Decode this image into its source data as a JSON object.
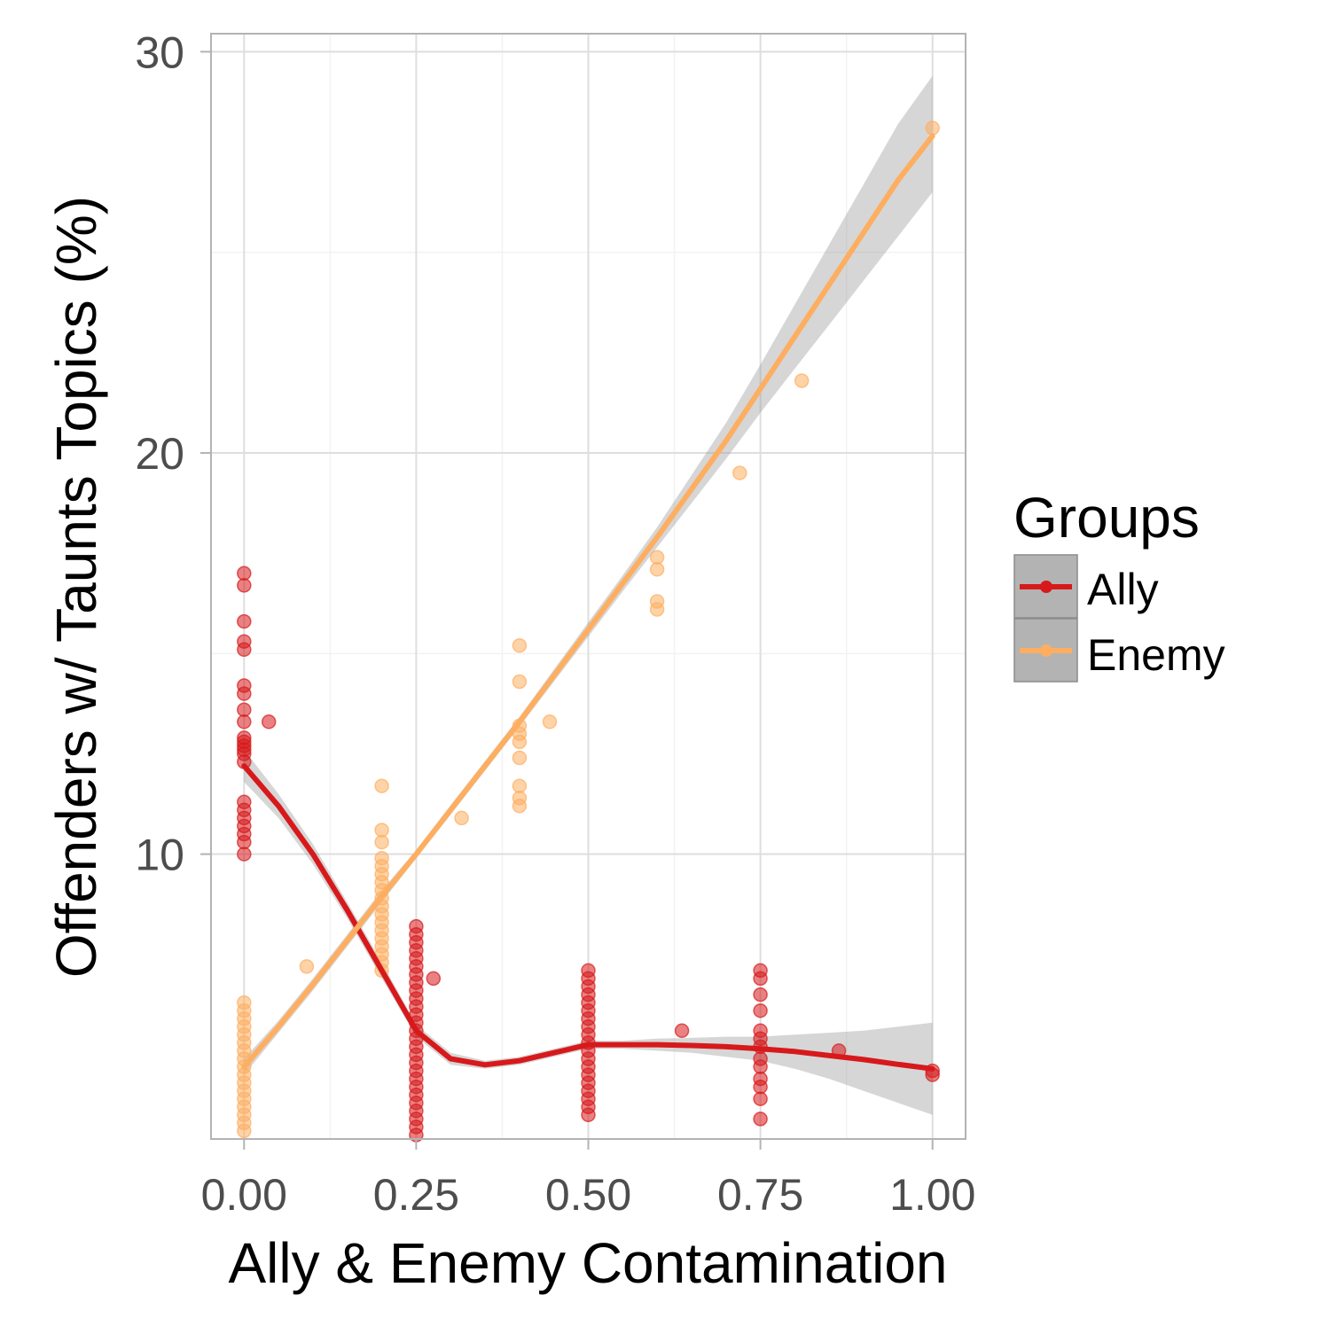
{
  "chart_data": {
    "type": "scatter",
    "title": "",
    "xlabel": "Ally & Enemy Contamination",
    "ylabel": "Offenders w/ Taunts Topics (%)",
    "xlim": [
      -0.048,
      1.048
    ],
    "ylim": [
      2.9,
      30.45
    ],
    "x_ticks": [
      0.0,
      0.25,
      0.5,
      0.75,
      1.0
    ],
    "x_tick_labels": [
      "0.00",
      "0.25",
      "0.50",
      "0.75",
      "1.00"
    ],
    "y_ticks": [
      10,
      20,
      30
    ],
    "y_tick_labels": [
      "10",
      "20",
      "30"
    ],
    "grid": true,
    "legend": {
      "title": "Groups",
      "position": "right",
      "entries": [
        "Ally",
        "Enemy"
      ]
    },
    "series": [
      {
        "name": "Ally",
        "color": "#d7191c",
        "points": [
          [
            0.0,
            17.0
          ],
          [
            0.0,
            16.7
          ],
          [
            0.0,
            15.8
          ],
          [
            0.0,
            15.3
          ],
          [
            0.0,
            15.1
          ],
          [
            0.0,
            14.2
          ],
          [
            0.0,
            14.0
          ],
          [
            0.0,
            13.6
          ],
          [
            0.0,
            13.3
          ],
          [
            0.0,
            12.9
          ],
          [
            0.0,
            12.8
          ],
          [
            0.0,
            12.7
          ],
          [
            0.0,
            12.6
          ],
          [
            0.0,
            12.5
          ],
          [
            0.0,
            12.3
          ],
          [
            0.0,
            11.3
          ],
          [
            0.0,
            11.1
          ],
          [
            0.0,
            10.9
          ],
          [
            0.0,
            10.7
          ],
          [
            0.0,
            10.5
          ],
          [
            0.0,
            10.3
          ],
          [
            0.0,
            10.0
          ],
          [
            0.036,
            13.3
          ],
          [
            0.25,
            8.2
          ],
          [
            0.25,
            8.0
          ],
          [
            0.25,
            7.8
          ],
          [
            0.25,
            7.6
          ],
          [
            0.25,
            7.4
          ],
          [
            0.25,
            7.2
          ],
          [
            0.25,
            7.0
          ],
          [
            0.25,
            6.8
          ],
          [
            0.25,
            6.6
          ],
          [
            0.25,
            6.4
          ],
          [
            0.25,
            6.2
          ],
          [
            0.25,
            6.0
          ],
          [
            0.25,
            5.8
          ],
          [
            0.25,
            5.6
          ],
          [
            0.25,
            5.4
          ],
          [
            0.25,
            5.2
          ],
          [
            0.25,
            5.0
          ],
          [
            0.25,
            4.8
          ],
          [
            0.25,
            4.6
          ],
          [
            0.25,
            4.4
          ],
          [
            0.25,
            4.2
          ],
          [
            0.25,
            4.0
          ],
          [
            0.25,
            3.8
          ],
          [
            0.25,
            3.6
          ],
          [
            0.25,
            3.4
          ],
          [
            0.25,
            3.2
          ],
          [
            0.25,
            3.0
          ],
          [
            0.275,
            6.9
          ],
          [
            0.5,
            7.1
          ],
          [
            0.5,
            6.9
          ],
          [
            0.5,
            6.7
          ],
          [
            0.5,
            6.5
          ],
          [
            0.5,
            6.3
          ],
          [
            0.5,
            6.1
          ],
          [
            0.5,
            5.9
          ],
          [
            0.5,
            5.7
          ],
          [
            0.5,
            5.5
          ],
          [
            0.5,
            5.3
          ],
          [
            0.5,
            5.1
          ],
          [
            0.5,
            4.9
          ],
          [
            0.5,
            4.7
          ],
          [
            0.5,
            4.5
          ],
          [
            0.5,
            4.3
          ],
          [
            0.5,
            4.1
          ],
          [
            0.5,
            3.9
          ],
          [
            0.5,
            3.7
          ],
          [
            0.5,
            3.5
          ],
          [
            0.636,
            5.6
          ],
          [
            0.75,
            7.1
          ],
          [
            0.75,
            6.9
          ],
          [
            0.75,
            6.5
          ],
          [
            0.75,
            6.1
          ],
          [
            0.75,
            5.6
          ],
          [
            0.75,
            5.4
          ],
          [
            0.75,
            5.2
          ],
          [
            0.75,
            4.9
          ],
          [
            0.75,
            4.7
          ],
          [
            0.75,
            4.4
          ],
          [
            0.75,
            4.2
          ],
          [
            0.75,
            3.9
          ],
          [
            0.75,
            3.4
          ],
          [
            0.864,
            5.1
          ],
          [
            1.0,
            4.6
          ],
          [
            1.0,
            4.5
          ]
        ],
        "trend": {
          "x": [
            0.0,
            0.05,
            0.1,
            0.15,
            0.2,
            0.25,
            0.3,
            0.35,
            0.4,
            0.45,
            0.5,
            0.55,
            0.6,
            0.65,
            0.7,
            0.75,
            0.8,
            0.85,
            0.9,
            0.95,
            1.0
          ],
          "y": [
            12.2,
            11.2,
            10.0,
            8.6,
            7.1,
            5.6,
            4.9,
            4.75,
            4.85,
            5.05,
            5.25,
            5.25,
            5.25,
            5.23,
            5.2,
            5.15,
            5.08,
            4.98,
            4.88,
            4.76,
            4.65
          ],
          "ci_lower": [
            11.8,
            10.9,
            9.75,
            8.4,
            6.9,
            5.45,
            4.75,
            4.65,
            4.75,
            4.95,
            5.15,
            5.15,
            5.1,
            5.05,
            4.95,
            4.85,
            4.65,
            4.4,
            4.1,
            3.8,
            3.5
          ],
          "ci_upper": [
            12.6,
            11.5,
            10.25,
            8.8,
            7.3,
            5.75,
            5.05,
            4.85,
            4.95,
            5.15,
            5.35,
            5.35,
            5.4,
            5.42,
            5.45,
            5.45,
            5.5,
            5.55,
            5.6,
            5.7,
            5.8
          ]
        }
      },
      {
        "name": "Enemy",
        "color": "#fdae61",
        "points": [
          [
            0.0,
            6.3
          ],
          [
            0.0,
            6.1
          ],
          [
            0.0,
            5.9
          ],
          [
            0.0,
            5.7
          ],
          [
            0.0,
            5.5
          ],
          [
            0.0,
            5.3
          ],
          [
            0.0,
            5.1
          ],
          [
            0.0,
            4.9
          ],
          [
            0.0,
            4.7
          ],
          [
            0.0,
            4.5
          ],
          [
            0.0,
            4.3
          ],
          [
            0.0,
            4.1
          ],
          [
            0.0,
            3.9
          ],
          [
            0.0,
            3.7
          ],
          [
            0.0,
            3.5
          ],
          [
            0.0,
            3.3
          ],
          [
            0.0,
            3.1
          ],
          [
            0.091,
            7.2
          ],
          [
            0.2,
            11.7
          ],
          [
            0.2,
            10.6
          ],
          [
            0.2,
            10.3
          ],
          [
            0.2,
            9.9
          ],
          [
            0.2,
            9.7
          ],
          [
            0.2,
            9.5
          ],
          [
            0.2,
            9.3
          ],
          [
            0.2,
            9.1
          ],
          [
            0.2,
            8.9
          ],
          [
            0.2,
            8.7
          ],
          [
            0.2,
            8.5
          ],
          [
            0.2,
            8.3
          ],
          [
            0.2,
            8.1
          ],
          [
            0.2,
            7.9
          ],
          [
            0.2,
            7.7
          ],
          [
            0.2,
            7.5
          ],
          [
            0.2,
            7.3
          ],
          [
            0.2,
            7.1
          ],
          [
            0.316,
            10.9
          ],
          [
            0.4,
            15.2
          ],
          [
            0.4,
            14.3
          ],
          [
            0.4,
            13.2
          ],
          [
            0.4,
            13.0
          ],
          [
            0.4,
            12.8
          ],
          [
            0.4,
            12.4
          ],
          [
            0.4,
            11.7
          ],
          [
            0.4,
            11.4
          ],
          [
            0.4,
            11.2
          ],
          [
            0.444,
            13.3
          ],
          [
            0.6,
            17.4
          ],
          [
            0.6,
            17.1
          ],
          [
            0.6,
            16.3
          ],
          [
            0.6,
            16.1
          ],
          [
            0.72,
            19.5
          ],
          [
            0.81,
            21.8
          ],
          [
            1.0,
            28.1
          ]
        ],
        "trend": {
          "x": [
            0.0,
            0.05,
            0.1,
            0.15,
            0.2,
            0.25,
            0.3,
            0.35,
            0.4,
            0.45,
            0.5,
            0.55,
            0.6,
            0.65,
            0.7,
            0.75,
            0.8,
            0.85,
            0.9,
            0.95,
            1.0
          ],
          "y": [
            4.7,
            5.7,
            6.75,
            7.85,
            8.95,
            10.0,
            11.1,
            12.2,
            13.3,
            14.45,
            15.6,
            16.75,
            17.9,
            19.1,
            20.3,
            21.6,
            22.9,
            24.2,
            25.5,
            26.8,
            27.9
          ],
          "ci_lower": [
            4.5,
            5.55,
            6.6,
            7.7,
            8.8,
            9.9,
            10.98,
            12.08,
            13.18,
            14.3,
            15.42,
            16.55,
            17.65,
            18.75,
            19.85,
            21.0,
            22.1,
            23.2,
            24.3,
            25.4,
            26.5
          ],
          "ci_upper": [
            4.9,
            5.85,
            6.9,
            8.0,
            9.1,
            10.1,
            11.22,
            12.32,
            13.42,
            14.6,
            15.78,
            16.95,
            18.15,
            19.45,
            20.75,
            22.2,
            23.7,
            25.2,
            26.7,
            28.2,
            29.4
          ]
        }
      }
    ]
  }
}
